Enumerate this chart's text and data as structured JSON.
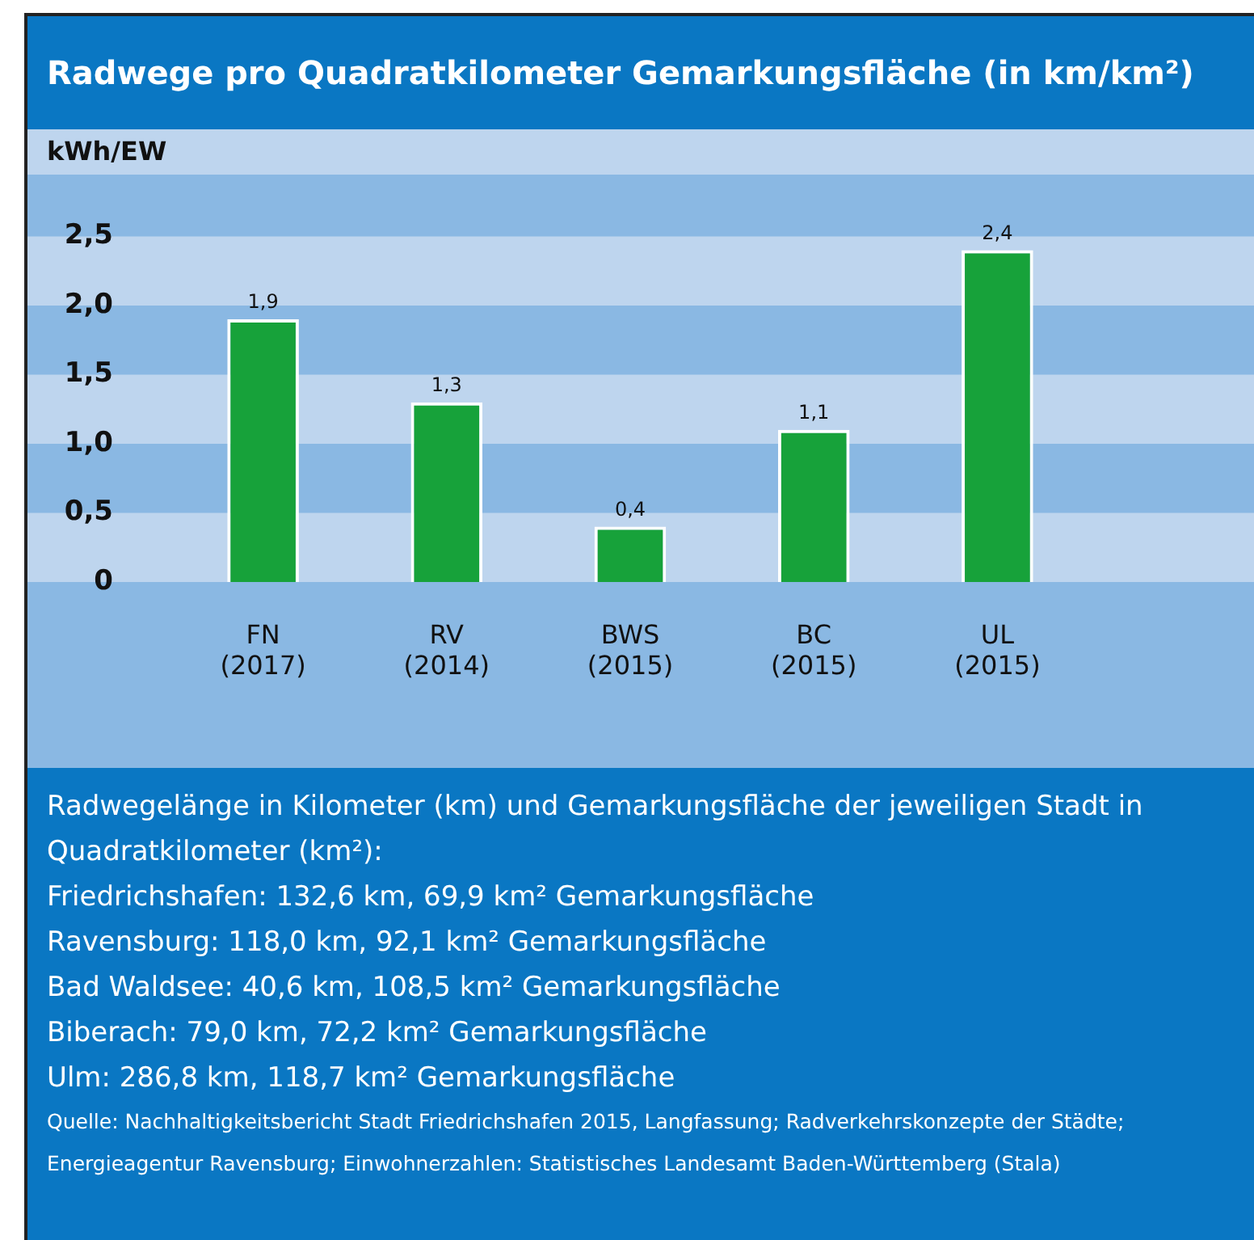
{
  "chart_data": {
    "type": "bar",
    "title": "Radwege pro Quadratkilometer Gemarkungsfläche (in km/km²)",
    "ylabel": "kWh/EW",
    "categories": [
      "FN\n(2017)",
      "RV\n(2014)",
      "BWS\n(2015)",
      "BC\n(2015)",
      "UL\n(2015)"
    ],
    "values": [
      1.9,
      1.3,
      0.4,
      1.1,
      2.4
    ],
    "value_labels": [
      "1,9",
      "1,3",
      "0,4",
      "1,1",
      "2,4"
    ],
    "color": "#17a23a",
    "ylim": [
      0,
      2.5
    ],
    "bands": [
      {
        "axis": "y",
        "from": 0,
        "to": 0.5,
        "color": "#bed5ee"
      },
      {
        "axis": "y",
        "from": 1,
        "to": 1.5,
        "color": "#bed5ee"
      },
      {
        "axis": "y",
        "from": 2,
        "to": 2.5,
        "color": "#bed5ee"
      }
    ],
    "yticks": [
      0,
      {
        "value": 0.5,
        "label": "0,5"
      },
      {
        "value": 1,
        "label": "1,0"
      },
      {
        "value": 1.5,
        "label": "1,5"
      },
      {
        "value": 2,
        "label": "2,0"
      },
      {
        "value": 2.5,
        "label": "2,5"
      }
    ],
    "legend": false,
    "annotations": [
      "Radwegelänge in Kilometer (km) und Gemarkungsfläche der jeweiligen Stadt in Quadratkilometer (km²):",
      "Friedrichshafen: 132,6 km, 69,9 km² Gemarkungsfläche",
      "Ravensburg: 118,0 km, 92,1 km² Gemarkungsfläche",
      "Bad Waldsee: 40,6 km, 108,5 km² Gemarkungsfläche",
      "Biberach: 79,0 km, 72,2 km² Gemarkungsfläche",
      "Ulm: 286,8 km, 118,7 km² Gemarkungsfläche",
      "Quelle: Nachhaltigkeitsbericht Stadt Friedrichshafen 2015, Langfassung; Radverkehrskonzepte der Städte; Energieagentur Ravensburg; Einwohnerzahlen: Statistisches Landesamt Baden-Württemberg (Stala)"
    ]
  }
}
